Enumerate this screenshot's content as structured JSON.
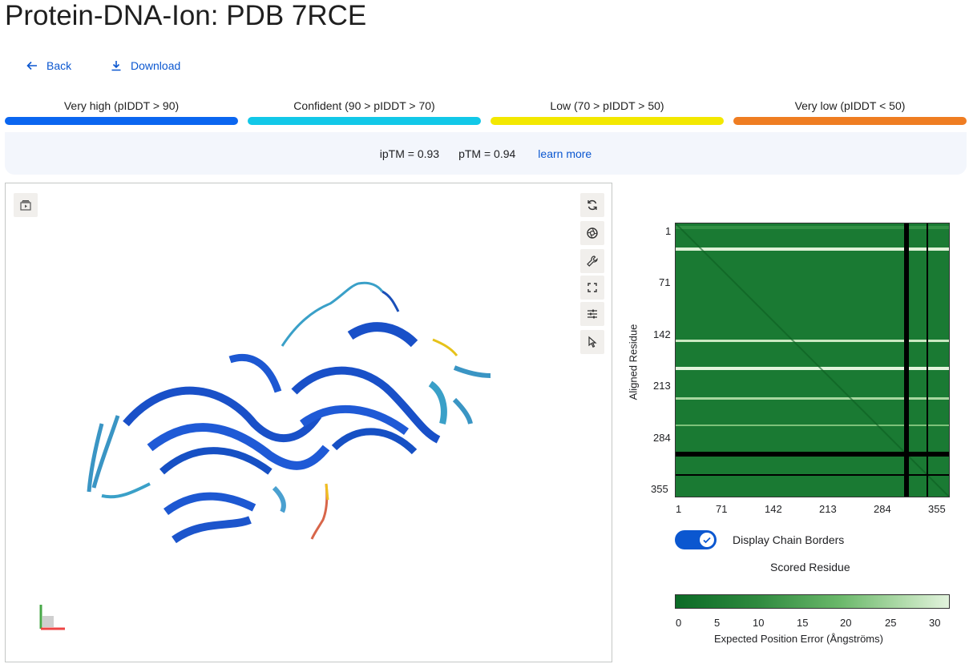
{
  "page": {
    "title": "Protein-DNA-Ion: PDB 7RCE"
  },
  "nav": {
    "back_label": "Back",
    "download_label": "Download"
  },
  "confidence_legend": [
    {
      "label": "Very high (pIDDT > 90)",
      "color": "#0b66f0"
    },
    {
      "label": "Confident (90 > pIDDT > 70)",
      "color": "#12c8e8"
    },
    {
      "label": "Low (70 > pIDDT > 50)",
      "color": "#f3e800"
    },
    {
      "label": "Very low (pIDDT < 50)",
      "color": "#ef7d22"
    }
  ],
  "scores": {
    "iptm": "ipTM = 0.93",
    "ptm": "pTM = 0.94",
    "learn_more": "learn more"
  },
  "viewer": {
    "toolbar_icons": [
      "play-panel-icon",
      "rotate-icon",
      "aperture-icon",
      "wrench-icon",
      "fullscreen-icon",
      "sliders-icon",
      "cursor-icon"
    ]
  },
  "pae": {
    "y_label": "Aligned Residue",
    "x_label": "Scored Residue",
    "y_ticks": [
      "1",
      "71",
      "142",
      "213",
      "284",
      "355"
    ],
    "x_ticks": [
      "1",
      "71",
      "142",
      "213",
      "284",
      "355"
    ],
    "toggle_label": "Display Chain Borders",
    "toggle_on": true,
    "colorbar_ticks": [
      "0",
      "5",
      "10",
      "15",
      "20",
      "25",
      "30"
    ],
    "colorbar_label": "Expected Position Error (Ångströms)",
    "low_color": "#0b6b26",
    "high_color": "#e2f3dd"
  }
}
